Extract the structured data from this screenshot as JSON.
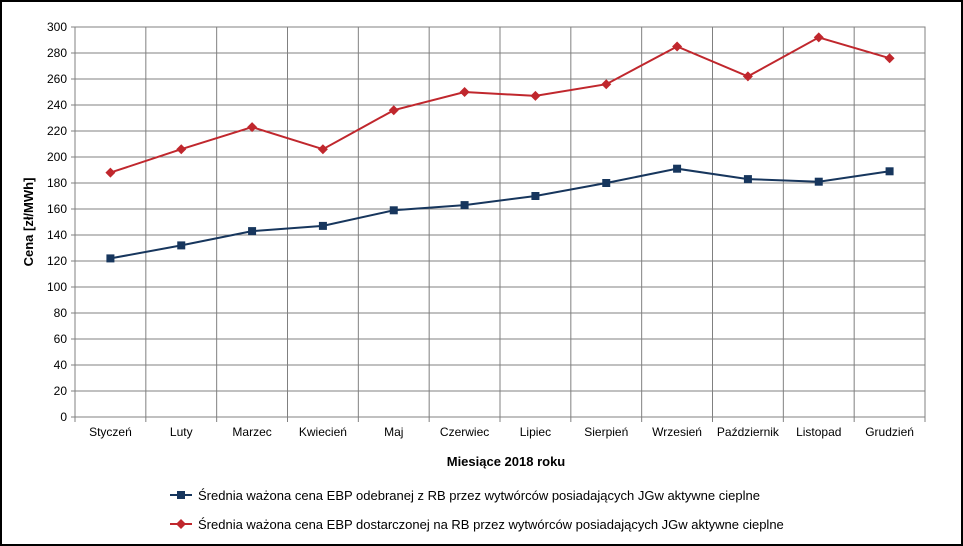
{
  "chart_data": {
    "type": "line",
    "title": "",
    "xlabel": "Miesiące 2018  roku",
    "ylabel": "Cena [zł/MWh]",
    "ylim": [
      0,
      300
    ],
    "ytick_step": 20,
    "grid": true,
    "legend_position": "bottom",
    "categories": [
      "Styczeń",
      "Luty",
      "Marzec",
      "Kwiecień",
      "Maj",
      "Czerwiec",
      "Lipiec",
      "Sierpień",
      "Wrzesień",
      "Październik",
      "Listopad",
      "Grudzień"
    ],
    "series": [
      {
        "name": "Średnia ważona cena EBP odebranej z RB przez wytwórców posiadających JGw aktywne cieplne",
        "color": "#17365D",
        "marker": "square",
        "values": [
          122,
          132,
          143,
          147,
          159,
          163,
          170,
          180,
          191,
          183,
          181,
          189
        ]
      },
      {
        "name": "Średnia ważona cena EBP dostarczonej na RB przez wytwórców posiadających JGw aktywne cieplne",
        "color": "#C0272D",
        "marker": "diamond",
        "values": [
          188,
          206,
          223,
          206,
          236,
          250,
          247,
          256,
          285,
          262,
          292,
          276
        ]
      }
    ]
  }
}
